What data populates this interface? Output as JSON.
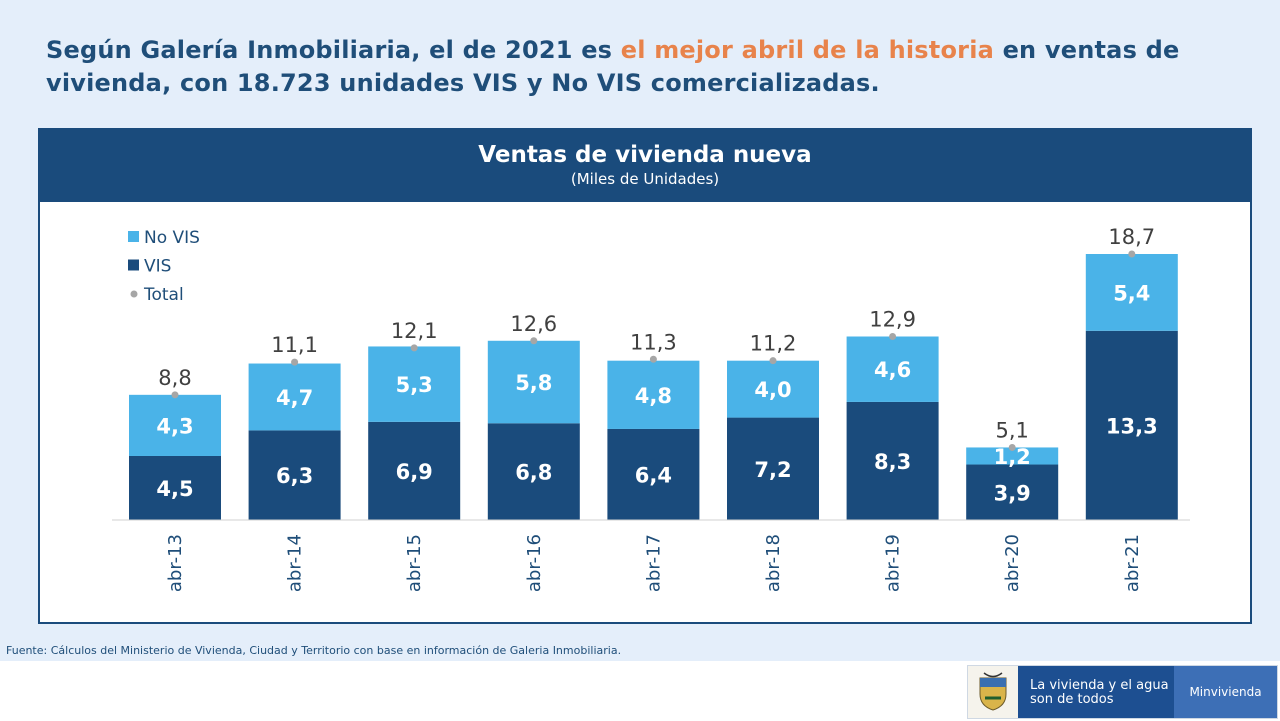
{
  "headline": {
    "part1": "Según Galería Inmobiliaria, el de 2021 es ",
    "highlight": "el mejor abril de la historia",
    "part2": " en ventas de vivienda, con 18.723 unidades VIS y No VIS comercializadas."
  },
  "source_note": "Fuente: Cálculos del Ministerio de Vivienda, Ciudad y Territorio con base en información de Galeria Inmobiliaria.",
  "logo": {
    "slogan_line1": "La vivienda y el agua",
    "slogan_line2": "son de todos",
    "org": "Minvivienda"
  },
  "chart_data": {
    "type": "bar",
    "stacked": true,
    "title": "Ventas de vivienda nueva",
    "subtitle": "(Miles de Unidades)",
    "categories": [
      "abr-13",
      "abr-14",
      "abr-15",
      "abr-16",
      "abr-17",
      "abr-18",
      "abr-19",
      "abr-20",
      "abr-21"
    ],
    "series": [
      {
        "name": "VIS",
        "color": "#1a4b7c",
        "values": [
          4.5,
          6.3,
          6.9,
          6.8,
          6.4,
          7.2,
          8.3,
          3.9,
          13.3
        ]
      },
      {
        "name": "No VIS",
        "color": "#4ab3e8",
        "values": [
          4.3,
          4.7,
          5.3,
          5.8,
          4.8,
          4.0,
          4.6,
          1.2,
          5.4
        ]
      }
    ],
    "total": {
      "name": "Total",
      "color": "#a6a6a6",
      "values": [
        8.8,
        11.1,
        12.1,
        12.6,
        11.3,
        11.2,
        12.9,
        5.1,
        18.7
      ]
    },
    "legend_order": [
      "No VIS",
      "VIS",
      "Total"
    ],
    "legend_position": "top-left",
    "ylim": [
      0,
      18.7
    ],
    "grid": false,
    "decimal_separator": ","
  }
}
